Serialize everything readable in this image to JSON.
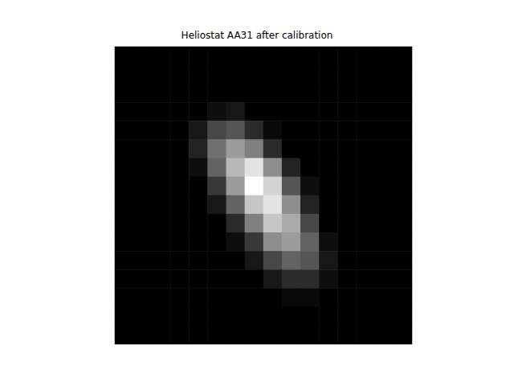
{
  "chart_data": {
    "type": "heatmap",
    "title": "Heliostat AA31 after calibration",
    "tick_labels": false,
    "cells": [
      [
        0,
        0,
        0,
        0,
        0,
        0,
        0,
        0,
        0,
        0,
        0,
        0,
        0,
        0,
        0,
        0
      ],
      [
        0,
        0,
        0,
        0,
        0,
        0,
        0,
        0,
        0,
        0,
        0,
        0,
        0,
        0,
        0,
        0
      ],
      [
        0,
        0,
        0,
        0,
        0,
        0,
        0,
        0,
        0,
        0,
        0,
        0,
        0,
        0,
        0,
        0
      ],
      [
        0,
        0,
        0,
        0,
        0,
        0.05,
        0.08,
        0,
        0,
        0,
        0,
        0,
        0,
        0,
        0,
        0
      ],
      [
        0,
        0,
        0,
        0,
        0.08,
        0.25,
        0.3,
        0.15,
        0.03,
        0,
        0,
        0,
        0,
        0,
        0,
        0
      ],
      [
        0,
        0,
        0,
        0,
        0.12,
        0.4,
        0.55,
        0.45,
        0.15,
        0,
        0,
        0,
        0,
        0,
        0,
        0
      ],
      [
        0,
        0,
        0,
        0,
        0.05,
        0.35,
        0.65,
        0.8,
        0.5,
        0.12,
        0,
        0,
        0,
        0,
        0,
        0
      ],
      [
        0,
        0,
        0,
        0,
        0,
        0.2,
        0.55,
        0.9,
        0.75,
        0.3,
        0.05,
        0,
        0,
        0,
        0,
        0
      ],
      [
        0,
        0,
        0,
        0,
        0,
        0.08,
        0.35,
        0.7,
        0.8,
        0.5,
        0.12,
        0,
        0,
        0,
        0,
        0
      ],
      [
        0,
        0,
        0,
        0,
        0,
        0,
        0.15,
        0.45,
        0.7,
        0.6,
        0.25,
        0,
        0,
        0,
        0,
        0
      ],
      [
        0,
        0,
        0,
        0,
        0,
        0,
        0.05,
        0.2,
        0.5,
        0.55,
        0.35,
        0.05,
        0,
        0,
        0,
        0
      ],
      [
        0,
        0,
        0,
        0,
        0,
        0,
        0,
        0.08,
        0.25,
        0.35,
        0.3,
        0.08,
        0,
        0,
        0,
        0
      ],
      [
        0,
        0,
        0,
        0,
        0,
        0,
        0,
        0,
        0.08,
        0.15,
        0.15,
        0.05,
        0,
        0,
        0,
        0
      ],
      [
        0,
        0,
        0,
        0,
        0,
        0,
        0,
        0,
        0,
        0.03,
        0.03,
        0,
        0,
        0,
        0,
        0
      ],
      [
        0,
        0,
        0,
        0,
        0,
        0,
        0,
        0,
        0,
        0,
        0,
        0,
        0,
        0,
        0,
        0
      ],
      [
        0,
        0,
        0,
        0,
        0,
        0,
        0,
        0,
        0,
        0,
        0,
        0,
        0,
        0,
        0,
        0
      ]
    ]
  }
}
